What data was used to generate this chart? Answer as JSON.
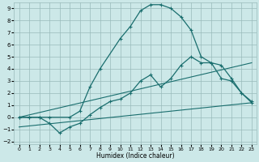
{
  "bg_color": "#cce8e8",
  "grid_color": "#99bbbb",
  "line_color": "#1a6e6e",
  "xlabel": "Humidex (Indice chaleur)",
  "xlim": [
    -0.5,
    23.5
  ],
  "ylim": [
    -2.2,
    9.5
  ],
  "xtick_labels": [
    "0",
    "1",
    "2",
    "3",
    "4",
    "5",
    "6",
    "7",
    "8",
    "9",
    "10",
    "11",
    "12",
    "13",
    "14",
    "15",
    "16",
    "17",
    "18",
    "19",
    "20",
    "21",
    "22",
    "23"
  ],
  "xtick_vals": [
    0,
    1,
    2,
    3,
    4,
    5,
    6,
    7,
    8,
    9,
    10,
    11,
    12,
    13,
    14,
    15,
    16,
    17,
    18,
    19,
    20,
    21,
    22,
    23
  ],
  "ytick_vals": [
    -2,
    -1,
    0,
    1,
    2,
    3,
    4,
    5,
    6,
    7,
    8,
    9
  ],
  "curve_upper_x": [
    0,
    1,
    2,
    3,
    5,
    6,
    7,
    8,
    10,
    11,
    12,
    13,
    14,
    15,
    16,
    17,
    18,
    19,
    20,
    21,
    22,
    23
  ],
  "curve_upper_y": [
    0,
    0,
    0,
    0,
    0,
    0.5,
    2.5,
    4.0,
    6.5,
    7.5,
    8.8,
    9.3,
    9.3,
    9.0,
    8.3,
    7.2,
    5.0,
    4.5,
    3.2,
    3.0,
    2.0,
    1.2
  ],
  "curve_lower_x": [
    0,
    1,
    2,
    3,
    4,
    5,
    6,
    7,
    8,
    9,
    10,
    11,
    12,
    13,
    14,
    15,
    16,
    17,
    18,
    19,
    20,
    21,
    22,
    23
  ],
  "curve_lower_y": [
    0,
    0,
    0,
    -0.5,
    -1.3,
    -0.8,
    -0.5,
    0.2,
    0.8,
    1.3,
    1.5,
    2.0,
    3.0,
    3.5,
    2.5,
    3.2,
    4.3,
    5.0,
    4.5,
    4.5,
    4.3,
    3.2,
    2.0,
    1.3
  ],
  "line1_x": [
    0,
    23
  ],
  "line1_y": [
    0,
    4.5
  ],
  "line2_x": [
    0,
    23
  ],
  "line2_y": [
    -0.8,
    1.2
  ]
}
